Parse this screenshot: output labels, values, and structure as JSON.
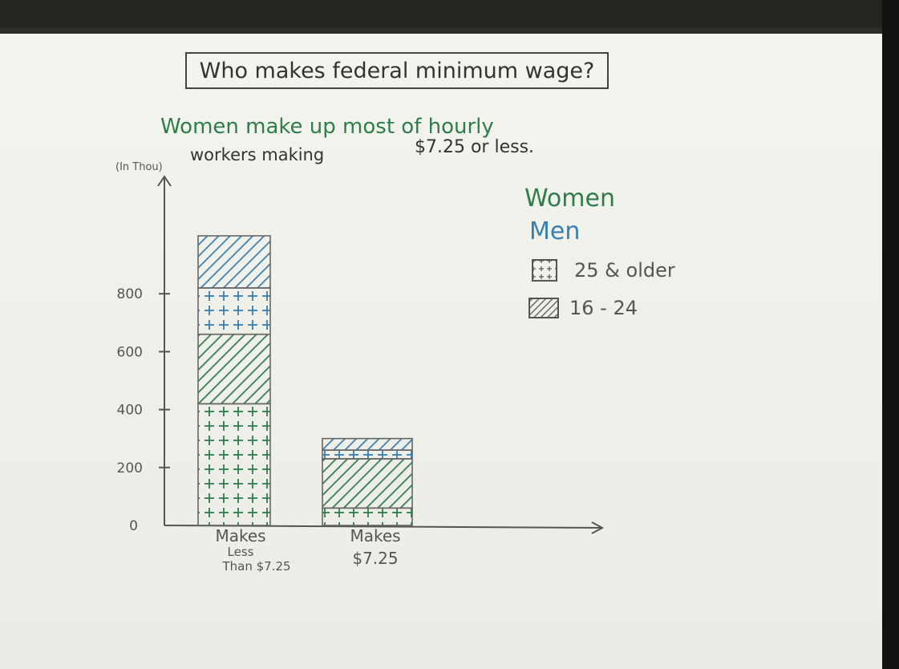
{
  "colors": {
    "women": "#2e7d4a",
    "men": "#3a7fb0",
    "pencil": "#555555",
    "paper": "#f0f0ea"
  },
  "chart_data": {
    "type": "bar",
    "stacked": true,
    "title": "Who makes federal minimum wage?",
    "subtitle_line1": "Women make up most of hourly",
    "subtitle_line2": "workers making",
    "subtitle_line2_value": "$7.25 or less.",
    "ylabel": "(In Thou)",
    "categories": [
      "Makes Less Than $7.25",
      "Makes $7.25"
    ],
    "category_lines": [
      [
        "Makes",
        "Less",
        "Than $7.25"
      ],
      [
        "Makes",
        "$7.25"
      ]
    ],
    "yticks": [
      0,
      200,
      400,
      600,
      800
    ],
    "ylim": [
      0,
      1000
    ],
    "series": [
      {
        "group": "Women",
        "age": "25 & older",
        "values": [
          420,
          60
        ]
      },
      {
        "group": "Women",
        "age": "16 - 24",
        "values": [
          240,
          170
        ]
      },
      {
        "group": "Men",
        "age": "25 & older",
        "values": [
          160,
          30
        ]
      },
      {
        "group": "Men",
        "age": "16 - 24",
        "values": [
          180,
          40
        ]
      }
    ],
    "legend": {
      "placement": "right",
      "group_labels": [
        "Women",
        "Men"
      ],
      "pattern_labels": [
        "25 & older",
        "16 - 24"
      ]
    }
  }
}
